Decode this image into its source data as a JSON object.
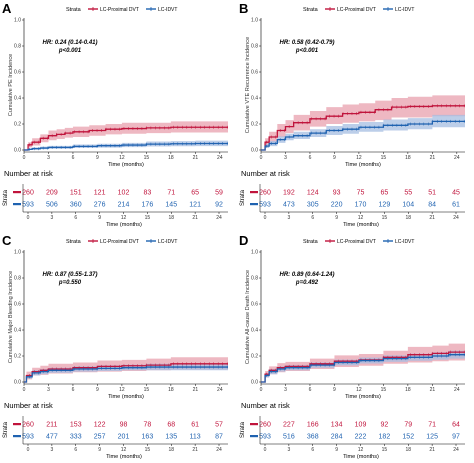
{
  "colors": {
    "proximal": "#c0143c",
    "idvt": "#1f62b0",
    "proximal_band": "#e8a0ae",
    "idvt_band": "#a6bde2"
  },
  "legend": {
    "title": "Strata",
    "proximal": "LC-Proximal DVT",
    "idvt": "LC-IDVT"
  },
  "risk_title": "Number at risk",
  "strata_side_label": "Strata",
  "chart_data": [
    {
      "panel": "A",
      "type": "line",
      "ylabel": "Cumulative PE Incidence",
      "xlabel": "Time (months)",
      "xlim": [
        0,
        25
      ],
      "ylim": [
        0,
        1
      ],
      "x_ticks": [
        0,
        3,
        6,
        9,
        12,
        15,
        18,
        21,
        24
      ],
      "y_ticks": [
        0.0,
        0.2,
        0.4,
        0.6,
        0.8,
        1.0
      ],
      "y_tick_labels": [
        "0.0",
        "0.2",
        "0.4",
        "0.6",
        "0.8",
        "1.0"
      ],
      "hr_label": "HR: 0.24 (0.14-0.41)",
      "p_label": "p<0.001",
      "series": [
        {
          "name": "LC-Proximal DVT",
          "key": "proximal",
          "points": [
            [
              0,
              0
            ],
            [
              0.5,
              0.04
            ],
            [
              1,
              0.06
            ],
            [
              2,
              0.09
            ],
            [
              3,
              0.11
            ],
            [
              4,
              0.12
            ],
            [
              5,
              0.13
            ],
            [
              6,
              0.14
            ],
            [
              8,
              0.15
            ],
            [
              10,
              0.16
            ],
            [
              12,
              0.165
            ],
            [
              15,
              0.17
            ],
            [
              18,
              0.175
            ],
            [
              21,
              0.175
            ],
            [
              25,
              0.175
            ]
          ],
          "lower": [
            0,
            0.02,
            0.035,
            0.06,
            0.075,
            0.085,
            0.095,
            0.1,
            0.11,
            0.12,
            0.125,
            0.13,
            0.135,
            0.135,
            0.135
          ],
          "upper": [
            0,
            0.06,
            0.09,
            0.12,
            0.15,
            0.16,
            0.17,
            0.18,
            0.19,
            0.2,
            0.21,
            0.21,
            0.22,
            0.22,
            0.22
          ]
        },
        {
          "name": "LC-IDVT",
          "key": "idvt",
          "points": [
            [
              0,
              0
            ],
            [
              0.5,
              0.005
            ],
            [
              1,
              0.01
            ],
            [
              2,
              0.015
            ],
            [
              3,
              0.02
            ],
            [
              6,
              0.028
            ],
            [
              9,
              0.033
            ],
            [
              12,
              0.038
            ],
            [
              15,
              0.045
            ],
            [
              18,
              0.048
            ],
            [
              21,
              0.05
            ],
            [
              25,
              0.05
            ]
          ],
          "lower": [
            0,
            0,
            0.003,
            0.006,
            0.009,
            0.015,
            0.018,
            0.022,
            0.027,
            0.029,
            0.03,
            0.03
          ],
          "upper": [
            0,
            0.012,
            0.02,
            0.026,
            0.032,
            0.042,
            0.048,
            0.055,
            0.065,
            0.068,
            0.072,
            0.072
          ]
        }
      ],
      "risk_table": {
        "times": [
          0,
          3,
          6,
          9,
          12,
          15,
          18,
          21,
          24
        ],
        "proximal": [
          260,
          209,
          151,
          121,
          102,
          83,
          71,
          65,
          59
        ],
        "idvt": [
          593,
          506,
          360,
          276,
          214,
          176,
          145,
          121,
          92
        ]
      }
    },
    {
      "panel": "B",
      "type": "line",
      "ylabel": "Cumulative VTE Recurrence Incidence",
      "xlabel": "Time (months)",
      "xlim": [
        0,
        25
      ],
      "ylim": [
        0,
        1
      ],
      "x_ticks": [
        0,
        3,
        6,
        9,
        12,
        15,
        18,
        21,
        24
      ],
      "y_ticks": [
        0.0,
        0.2,
        0.4,
        0.6,
        0.8,
        1.0
      ],
      "y_tick_labels": [
        "0.0",
        "0.2",
        "0.4",
        "0.6",
        "0.8",
        "1.0"
      ],
      "hr_label": "HR: 0.58 (0.42-0.79)",
      "p_label": "p<0.001",
      "series": [
        {
          "name": "LC-Proximal DVT",
          "key": "proximal",
          "points": [
            [
              0,
              0
            ],
            [
              0.5,
              0.06
            ],
            [
              1,
              0.1
            ],
            [
              2,
              0.15
            ],
            [
              3,
              0.18
            ],
            [
              4,
              0.21
            ],
            [
              6,
              0.24
            ],
            [
              8,
              0.26
            ],
            [
              10,
              0.28
            ],
            [
              12,
              0.29
            ],
            [
              14,
              0.31
            ],
            [
              16,
              0.33
            ],
            [
              18,
              0.335
            ],
            [
              21,
              0.34
            ],
            [
              25,
              0.34
            ]
          ],
          "lower": [
            0,
            0.03,
            0.06,
            0.1,
            0.13,
            0.15,
            0.18,
            0.2,
            0.21,
            0.22,
            0.23,
            0.25,
            0.25,
            0.26,
            0.26
          ],
          "upper": [
            0,
            0.09,
            0.14,
            0.2,
            0.23,
            0.27,
            0.3,
            0.33,
            0.35,
            0.36,
            0.38,
            0.4,
            0.41,
            0.42,
            0.42
          ]
        },
        {
          "name": "LC-IDVT",
          "key": "idvt",
          "points": [
            [
              0,
              0
            ],
            [
              0.5,
              0.03
            ],
            [
              1,
              0.05
            ],
            [
              2,
              0.08
            ],
            [
              3,
              0.1
            ],
            [
              4,
              0.11
            ],
            [
              6,
              0.13
            ],
            [
              8,
              0.15
            ],
            [
              10,
              0.16
            ],
            [
              12,
              0.175
            ],
            [
              15,
              0.19
            ],
            [
              18,
              0.2
            ],
            [
              21,
              0.22
            ],
            [
              25,
              0.22
            ]
          ],
          "lower": [
            0,
            0.015,
            0.03,
            0.055,
            0.075,
            0.085,
            0.1,
            0.115,
            0.125,
            0.14,
            0.15,
            0.16,
            0.175,
            0.175
          ],
          "upper": [
            0,
            0.045,
            0.07,
            0.105,
            0.125,
            0.14,
            0.16,
            0.185,
            0.2,
            0.215,
            0.235,
            0.245,
            0.27,
            0.27
          ]
        }
      ],
      "risk_table": {
        "times": [
          0,
          3,
          6,
          9,
          12,
          15,
          18,
          21,
          24
        ],
        "proximal": [
          260,
          192,
          124,
          93,
          75,
          65,
          55,
          51,
          45
        ],
        "idvt": [
          593,
          473,
          305,
          220,
          170,
          129,
          104,
          84,
          61
        ]
      }
    },
    {
      "panel": "C",
      "type": "line",
      "ylabel": "Cumulative Major Bleeding Incidence",
      "xlabel": "Time (months)",
      "xlim": [
        0,
        25
      ],
      "ylim": [
        0,
        1
      ],
      "x_ticks": [
        0,
        3,
        6,
        9,
        12,
        15,
        18,
        21,
        24
      ],
      "y_ticks": [
        0.0,
        0.2,
        0.4,
        0.6,
        0.8,
        1.0
      ],
      "y_tick_labels": [
        "0.0",
        "0.2",
        "0.4",
        "0.6",
        "0.8",
        "1.0"
      ],
      "hr_label": "HR: 0.87 (0.55-1.37)",
      "p_label": "p=0.550",
      "series": [
        {
          "name": "LC-Proximal DVT",
          "key": "proximal",
          "points": [
            [
              0,
              0
            ],
            [
              0.3,
              0.05
            ],
            [
              1,
              0.08
            ],
            [
              2,
              0.09
            ],
            [
              3,
              0.1
            ],
            [
              6,
              0.11
            ],
            [
              9,
              0.12
            ],
            [
              12,
              0.125
            ],
            [
              15,
              0.13
            ],
            [
              18,
              0.14
            ],
            [
              21,
              0.14
            ],
            [
              25,
              0.14
            ]
          ],
          "lower": [
            0,
            0.02,
            0.05,
            0.055,
            0.065,
            0.075,
            0.08,
            0.085,
            0.09,
            0.095,
            0.095,
            0.095
          ],
          "upper": [
            0,
            0.08,
            0.11,
            0.125,
            0.14,
            0.15,
            0.165,
            0.17,
            0.18,
            0.19,
            0.19,
            0.19
          ]
        },
        {
          "name": "LC-IDVT",
          "key": "idvt",
          "points": [
            [
              0,
              0
            ],
            [
              0.3,
              0.04
            ],
            [
              1,
              0.07
            ],
            [
              2,
              0.08
            ],
            [
              3,
              0.09
            ],
            [
              6,
              0.1
            ],
            [
              9,
              0.105
            ],
            [
              12,
              0.11
            ],
            [
              15,
              0.115
            ],
            [
              18,
              0.115
            ],
            [
              21,
              0.115
            ],
            [
              25,
              0.115
            ]
          ],
          "lower": [
            0,
            0.025,
            0.05,
            0.06,
            0.07,
            0.08,
            0.085,
            0.09,
            0.09,
            0.09,
            0.09,
            0.09
          ],
          "upper": [
            0,
            0.055,
            0.09,
            0.1,
            0.11,
            0.12,
            0.128,
            0.133,
            0.14,
            0.14,
            0.14,
            0.14
          ]
        }
      ],
      "risk_table": {
        "times": [
          0,
          3,
          6,
          9,
          12,
          15,
          18,
          21,
          24
        ],
        "proximal": [
          260,
          211,
          153,
          122,
          98,
          78,
          68,
          61,
          57
        ],
        "idvt": [
          593,
          477,
          333,
          257,
          201,
          163,
          135,
          113,
          87
        ]
      }
    },
    {
      "panel": "D",
      "type": "line",
      "ylabel": "Cumulative All-cause Death Incidence",
      "xlabel": "Time (months)",
      "xlim": [
        0,
        25
      ],
      "ylim": [
        0,
        1
      ],
      "x_ticks": [
        0,
        3,
        6,
        9,
        12,
        15,
        18,
        21,
        24
      ],
      "y_ticks": [
        0.0,
        0.2,
        0.4,
        0.6,
        0.8,
        1.0
      ],
      "y_tick_labels": [
        "0.0",
        "0.2",
        "0.4",
        "0.6",
        "0.8",
        "1.0"
      ],
      "hr_label": "HR: 0.89 (0.64-1.24)",
      "p_label": "p=0.492",
      "series": [
        {
          "name": "LC-Proximal DVT",
          "key": "proximal",
          "points": [
            [
              0,
              0
            ],
            [
              0.5,
              0.06
            ],
            [
              1,
              0.09
            ],
            [
              2,
              0.11
            ],
            [
              3,
              0.12
            ],
            [
              6,
              0.14
            ],
            [
              9,
              0.16
            ],
            [
              12,
              0.17
            ],
            [
              15,
              0.19
            ],
            [
              18,
              0.21
            ],
            [
              21,
              0.22
            ],
            [
              23,
              0.23
            ],
            [
              25,
              0.23
            ]
          ],
          "lower": [
            0,
            0.035,
            0.06,
            0.075,
            0.085,
            0.1,
            0.115,
            0.125,
            0.14,
            0.15,
            0.16,
            0.165,
            0.165
          ],
          "upper": [
            0,
            0.085,
            0.12,
            0.145,
            0.155,
            0.18,
            0.205,
            0.215,
            0.24,
            0.27,
            0.28,
            0.295,
            0.295
          ]
        },
        {
          "name": "LC-IDVT",
          "key": "idvt",
          "points": [
            [
              0,
              0
            ],
            [
              0.5,
              0.05
            ],
            [
              1,
              0.08
            ],
            [
              2,
              0.1
            ],
            [
              3,
              0.11
            ],
            [
              6,
              0.13
            ],
            [
              9,
              0.15
            ],
            [
              12,
              0.165
            ],
            [
              15,
              0.18
            ],
            [
              18,
              0.19
            ],
            [
              21,
              0.2
            ],
            [
              23,
              0.21
            ],
            [
              25,
              0.21
            ]
          ],
          "lower": [
            0,
            0.035,
            0.06,
            0.08,
            0.09,
            0.11,
            0.128,
            0.142,
            0.155,
            0.163,
            0.172,
            0.18,
            0.18
          ],
          "upper": [
            0,
            0.065,
            0.1,
            0.12,
            0.13,
            0.15,
            0.172,
            0.188,
            0.205,
            0.217,
            0.228,
            0.24,
            0.24
          ]
        }
      ],
      "risk_table": {
        "times": [
          0,
          3,
          6,
          9,
          12,
          15,
          18,
          21,
          24
        ],
        "proximal": [
          260,
          227,
          166,
          134,
          109,
          92,
          79,
          71,
          64
        ],
        "idvt": [
          593,
          516,
          368,
          284,
          222,
          182,
          152,
          125,
          97
        ]
      }
    }
  ]
}
